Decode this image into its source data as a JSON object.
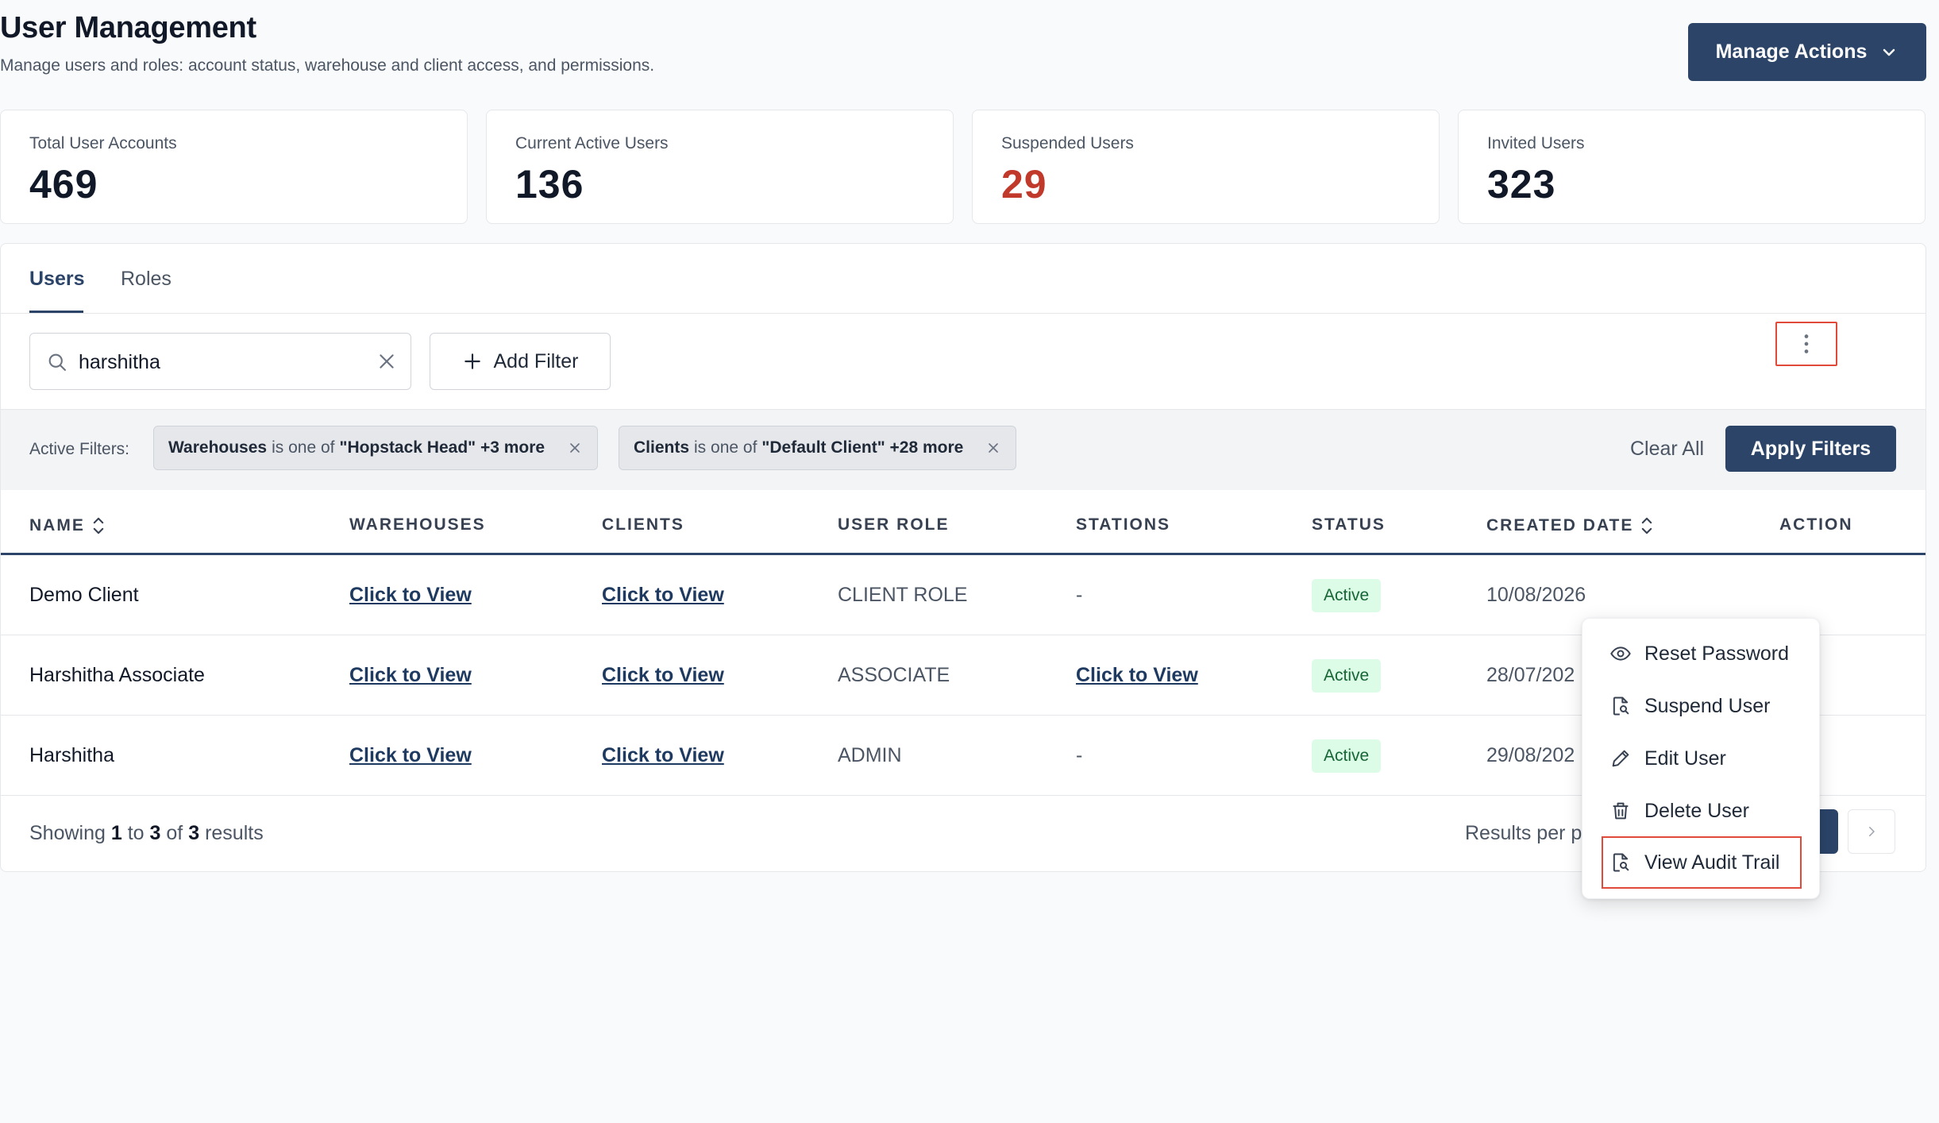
{
  "header": {
    "title": "User Management",
    "subtitle": "Manage users and roles: account status, warehouse and client access, and permissions.",
    "manage_actions_label": "Manage Actions"
  },
  "stats": [
    {
      "label": "Total User Accounts",
      "value": "469"
    },
    {
      "label": "Current Active Users",
      "value": "136"
    },
    {
      "label": "Suspended Users",
      "value": "29"
    },
    {
      "label": "Invited Users",
      "value": "323"
    }
  ],
  "colors": {
    "primary": "#2b4468",
    "suspended": "#c0392b",
    "active_badge_bg": "#dcfce7",
    "active_badge_text": "#166534",
    "highlight": "#e04a3a"
  },
  "tabs": [
    {
      "label": "Users"
    },
    {
      "label": "Roles"
    }
  ],
  "search": {
    "value": "harshitha"
  },
  "add_filter_label": "Add Filter",
  "filters": {
    "label": "Active Filters:",
    "chips": [
      {
        "field": "Warehouses",
        "op": "is one of",
        "value": "\"Hopstack Head\" +3 more"
      },
      {
        "field": "Clients",
        "op": "is one of",
        "value": "\"Default Client\" +28 more"
      }
    ],
    "clear_all_label": "Clear All",
    "apply_label": "Apply Filters"
  },
  "table": {
    "columns": [
      "NAME",
      "WAREHOUSES",
      "CLIENTS",
      "USER ROLE",
      "STATIONS",
      "STATUS",
      "CREATED DATE",
      "ACTION"
    ],
    "rows": [
      {
        "name": "Demo Client",
        "warehouses": "Click to View",
        "clients": "Click to View",
        "role": "CLIENT ROLE",
        "stations": "-",
        "status": "Active",
        "created": "10/08/2026"
      },
      {
        "name": "Harshitha Associate",
        "warehouses": "Click to View",
        "clients": "Click to View",
        "role": "ASSOCIATE",
        "stations": "Click to View",
        "status": "Active",
        "created": "28/07/202"
      },
      {
        "name": "Harshitha",
        "warehouses": "Click to View",
        "clients": "Click to View",
        "role": "ADMIN",
        "stations": "-",
        "status": "Active",
        "created": "29/08/202"
      }
    ]
  },
  "footer": {
    "showing": "Showing",
    "from": "1",
    "to_word": "to",
    "to": "3",
    "of_word": "of",
    "total": "3",
    "results_word": "results",
    "results_per_page": "Results per p"
  },
  "action_menu": {
    "items": [
      {
        "label": "Reset Password",
        "icon": "eye-icon"
      },
      {
        "label": "Suspend User",
        "icon": "document-search-icon"
      },
      {
        "label": "Edit User",
        "icon": "pencil-icon"
      },
      {
        "label": "Delete User",
        "icon": "trash-icon"
      },
      {
        "label": "View Audit Trail",
        "icon": "document-search-icon"
      }
    ]
  }
}
